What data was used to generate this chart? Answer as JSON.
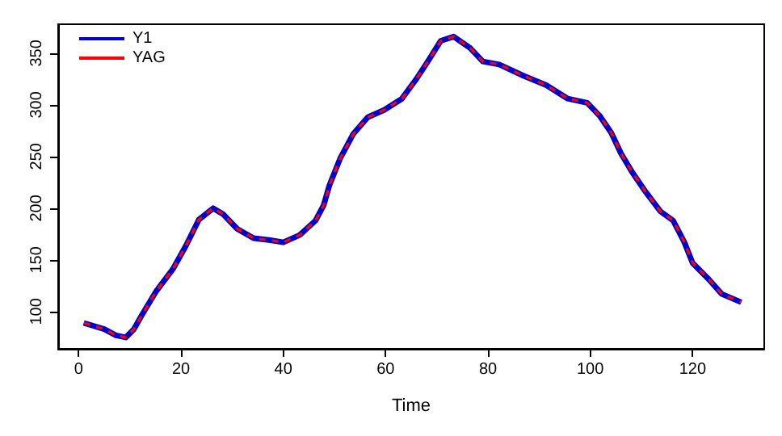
{
  "chart_data": {
    "type": "line",
    "xlabel": "Time",
    "xlim": [
      -4,
      134
    ],
    "ylim": [
      64,
      378
    ],
    "xticks": [
      0,
      20,
      40,
      60,
      80,
      100,
      120
    ],
    "yticks": [
      100,
      150,
      200,
      250,
      300,
      350
    ],
    "grid": false,
    "legend": "top left",
    "marker": "none",
    "x": [
      1,
      5,
      7.3,
      9.2,
      10.8,
      12.4,
      15.2,
      18.4,
      21,
      23.5,
      26.3,
      28.3,
      31,
      34.2,
      37.5,
      40,
      43.2,
      46.3,
      47.9,
      49,
      51.1,
      53.7,
      56.5,
      59.7,
      63.2,
      66,
      68,
      70.8,
      73.3,
      76.5,
      79,
      82.2,
      87,
      91.4,
      95.6,
      99.4,
      101.9,
      104.1,
      106,
      108.3,
      110.8,
      113.7,
      116.2,
      118.4,
      120,
      123.2,
      125.7,
      129.5
    ],
    "series": [
      {
        "name": "Y1",
        "color": "#0000cc",
        "line_style": "solid",
        "values": [
          89,
          83,
          77,
          75,
          83,
          97,
          120,
          141,
          164,
          189,
          200,
          194,
          180,
          171,
          169,
          167,
          174,
          188,
          203,
          222,
          248,
          272,
          288,
          295,
          306,
          325,
          340,
          362,
          366,
          355,
          342,
          339,
          328,
          319,
          306,
          302,
          289,
          273,
          253,
          234,
          216,
          197,
          188,
          167,
          147,
          131,
          117,
          109
        ]
      },
      {
        "name": "YAG",
        "color": "#ff0000",
        "line_style": "dashed",
        "values": [
          89,
          83,
          77,
          75,
          83,
          97,
          120,
          141,
          164,
          189,
          200,
          194,
          180,
          171,
          169,
          167,
          174,
          188,
          203,
          222,
          248,
          272,
          288,
          295,
          306,
          325,
          340,
          362,
          366,
          355,
          342,
          339,
          328,
          319,
          306,
          302,
          289,
          273,
          253,
          234,
          216,
          197,
          188,
          167,
          147,
          131,
          117,
          109
        ]
      }
    ]
  }
}
